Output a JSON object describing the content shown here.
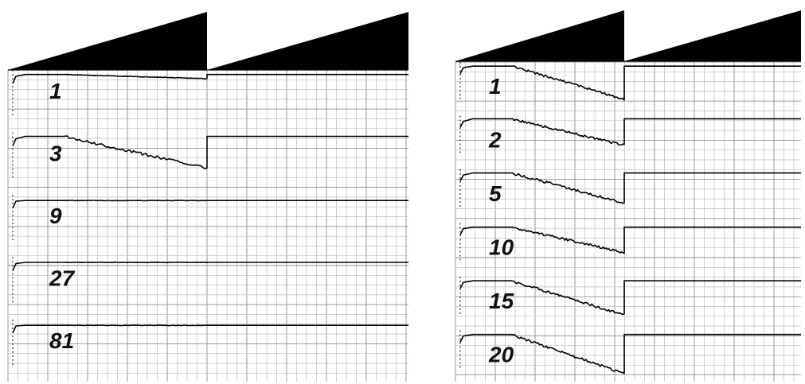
{
  "chart_data": [
    {
      "type": "line",
      "panel": "left",
      "title": "",
      "xlabel": "",
      "ylabel": "",
      "grid": true,
      "stimulus": "two ramping wedges above the traces",
      "series": [
        {
          "label": "1",
          "plateau": 0.05,
          "phase1_end": 0.12,
          "phase2": 0.05
        },
        {
          "label": "3",
          "plateau": 0.04,
          "phase1_end": 0.58,
          "phase2": 0.04
        },
        {
          "label": "9",
          "plateau": 0.07,
          "phase1_end": 0.07,
          "phase2": 0.07
        },
        {
          "label": "27",
          "plateau": 0.06,
          "phase1_end": 0.06,
          "phase2": 0.06
        },
        {
          "label": "81",
          "plateau": 0.07,
          "phase1_end": 0.07,
          "phase2": 0.07
        }
      ]
    },
    {
      "type": "line",
      "panel": "right",
      "title": "",
      "xlabel": "",
      "ylabel": "",
      "grid": true,
      "stimulus": "two ramping wedges above the traces",
      "series": [
        {
          "label": "1",
          "plateau": 0.05,
          "phase1_end": 0.7,
          "phase2": 0.05
        },
        {
          "label": "2",
          "plateau": 0.03,
          "phase1_end": 0.55,
          "phase2": 0.03
        },
        {
          "label": "5",
          "plateau": 0.04,
          "phase1_end": 0.63,
          "phase2": 0.04
        },
        {
          "label": "10",
          "plateau": 0.05,
          "phase1_end": 0.55,
          "phase2": 0.05
        },
        {
          "label": "15",
          "plateau": 0.05,
          "phase1_end": 0.72,
          "phase2": 0.05
        },
        {
          "label": "20",
          "plateau": 0.05,
          "phase1_end": 0.82,
          "phase2": 0.05
        }
      ]
    }
  ]
}
